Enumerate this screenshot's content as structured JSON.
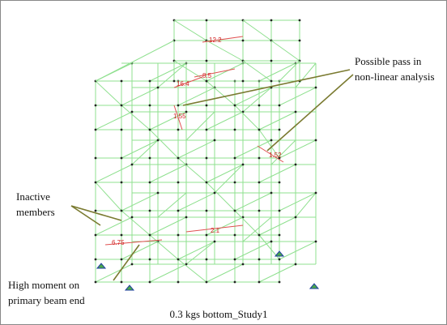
{
  "annotations": [
    {
      "lines": [
        "Possible pass in",
        "non-linear analysis"
      ]
    },
    {
      "lines": [
        "Inactive",
        "members"
      ]
    },
    {
      "lines": [
        "High moment on",
        "primary beam end"
      ]
    }
  ],
  "member_labels": [
    "12.2",
    "8.5",
    "16.4",
    "1.55",
    "1.52",
    "2.1",
    "6.75"
  ],
  "caption": "0.3 kgs bottom_Study1"
}
